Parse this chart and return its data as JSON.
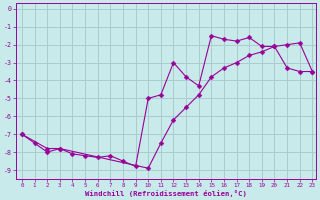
{
  "xlabel": "Windchill (Refroidissement éolien,°C)",
  "bg_color": "#c8eaea",
  "grid_color": "#aacccc",
  "line_color": "#990099",
  "xlim": [
    -0.5,
    23.3
  ],
  "ylim": [
    -9.5,
    0.3
  ],
  "yticks": [
    0,
    -1,
    -2,
    -3,
    -4,
    -5,
    -6,
    -7,
    -8,
    -9
  ],
  "xticks": [
    0,
    1,
    2,
    3,
    4,
    5,
    6,
    7,
    8,
    9,
    10,
    11,
    12,
    13,
    14,
    15,
    16,
    17,
    18,
    19,
    20,
    21,
    22,
    23
  ],
  "series1_x": [
    0,
    1,
    2,
    3,
    4,
    5,
    6,
    7,
    8,
    9,
    10,
    11,
    12,
    13,
    14,
    15,
    16,
    17,
    18,
    19,
    20,
    21,
    22,
    23
  ],
  "series1_y": [
    -7.0,
    -7.5,
    -8.0,
    -7.8,
    -8.1,
    -8.2,
    -8.3,
    -8.2,
    -8.5,
    -8.8,
    -5.0,
    -4.8,
    -3.0,
    -3.8,
    -4.3,
    -1.5,
    -1.7,
    -1.8,
    -1.6,
    -2.1,
    -2.1,
    -3.3,
    -3.5,
    -3.5
  ],
  "series2_x": [
    0,
    2,
    3,
    10,
    11,
    12,
    13,
    14,
    15,
    16,
    17,
    18,
    19,
    20,
    21,
    22,
    23
  ],
  "series2_y": [
    -7.0,
    -7.8,
    -7.8,
    -8.9,
    -7.5,
    -6.2,
    -5.5,
    -4.8,
    -3.8,
    -3.3,
    -3.0,
    -2.6,
    -2.4,
    -2.1,
    -2.0,
    -1.9,
    -3.5
  ]
}
